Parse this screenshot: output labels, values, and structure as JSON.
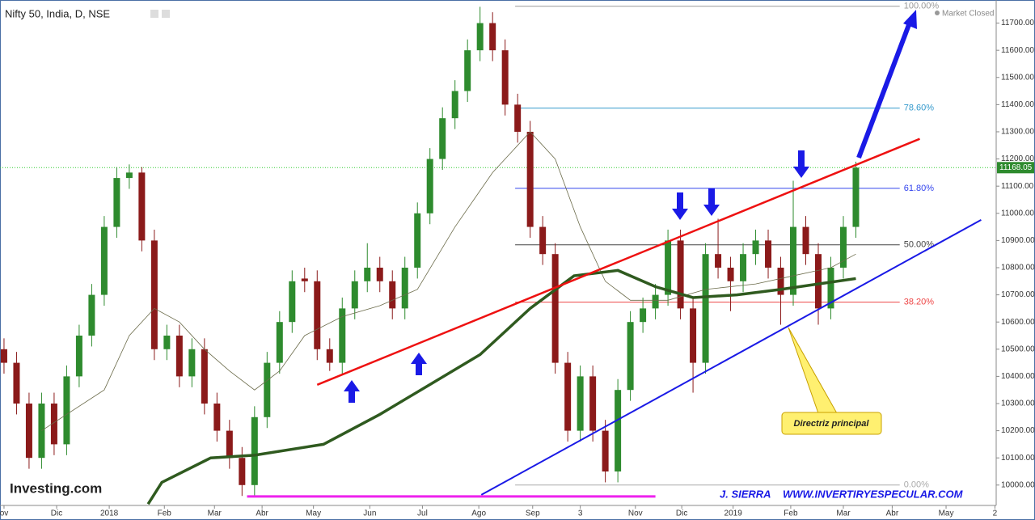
{
  "chart_data": {
    "type": "candlestick",
    "title": "Nifty 50, India, D, NSE",
    "status": "Market Closed",
    "watermark": "Investing.com",
    "author": "J. SIERRA",
    "site": "WWW.INVERTIRYESPECULAR.COM",
    "callout": "Directriz principal",
    "up_color": "#2e8b2e",
    "down_color": "#8b1a1a",
    "xlim": [
      -0.32,
      79.2
    ],
    "ylim": [
      9925,
      11785
    ],
    "grid": false,
    "xticks": [
      {
        "value": 0,
        "label": "ov"
      },
      {
        "value": 4.2,
        "label": "Dic"
      },
      {
        "value": 8.4,
        "label": "2018"
      },
      {
        "value": 12.8,
        "label": "Feb"
      },
      {
        "value": 16.8,
        "label": "Mar"
      },
      {
        "value": 20.6,
        "label": "Abr"
      },
      {
        "value": 24.7,
        "label": "May"
      },
      {
        "value": 29.2,
        "label": "Jun"
      },
      {
        "value": 33.4,
        "label": "Jul"
      },
      {
        "value": 37.9,
        "label": "Ago"
      },
      {
        "value": 42.2,
        "label": "Sep"
      },
      {
        "value": 46.0,
        "label": "3"
      },
      {
        "value": 50.4,
        "label": "Nov"
      },
      {
        "value": 54.1,
        "label": "Dic"
      },
      {
        "value": 58.2,
        "label": "2019"
      },
      {
        "value": 62.8,
        "label": "Feb"
      },
      {
        "value": 67.0,
        "label": "Mar"
      },
      {
        "value": 70.9,
        "label": "Abr"
      },
      {
        "value": 75.2,
        "label": "May"
      },
      {
        "value": 79.1,
        "label": "2"
      }
    ],
    "yticks": [
      {
        "value": 10000,
        "label": "10000.00"
      },
      {
        "value": 10100,
        "label": "10100.00"
      },
      {
        "value": 10200,
        "label": "10200.00"
      },
      {
        "value": 10300,
        "label": "10300.00"
      },
      {
        "value": 10400,
        "label": "10400.00"
      },
      {
        "value": 10500,
        "label": "10500.00"
      },
      {
        "value": 10600,
        "label": "10600.00"
      },
      {
        "value": 10700,
        "label": "10700.00"
      },
      {
        "value": 10800,
        "label": "10800.00"
      },
      {
        "value": 10900,
        "label": "10900.00"
      },
      {
        "value": 11000,
        "label": "11000.00"
      },
      {
        "value": 11100,
        "label": "11100.00"
      },
      {
        "value": 11200,
        "label": "11200.00"
      },
      {
        "value": 11300,
        "label": "11300.00"
      },
      {
        "value": 11400,
        "label": "11400.00"
      },
      {
        "value": 11500,
        "label": "11500.00"
      },
      {
        "value": 11600,
        "label": "11600.00"
      },
      {
        "value": 11700,
        "label": "11700.00"
      }
    ],
    "current": {
      "value": 11168.05,
      "label": "11168.05"
    },
    "ohlc": [
      [
        10500,
        10540,
        10410,
        10450
      ],
      [
        10450,
        10490,
        10260,
        10300
      ],
      [
        10300,
        10340,
        10060,
        10100
      ],
      [
        10100,
        10340,
        10060,
        10300
      ],
      [
        10300,
        10340,
        10110,
        10150
      ],
      [
        10150,
        10440,
        10110,
        10400
      ],
      [
        10400,
        10590,
        10360,
        10550
      ],
      [
        10550,
        10740,
        10510,
        10700
      ],
      [
        10700,
        10990,
        10660,
        10950
      ],
      [
        10950,
        11170,
        10910,
        11130
      ],
      [
        11130,
        11180,
        11090,
        11150
      ],
      [
        11150,
        11170,
        10860,
        10900
      ],
      [
        10900,
        10940,
        10460,
        10500
      ],
      [
        10500,
        10590,
        10460,
        10550
      ],
      [
        10550,
        10590,
        10360,
        10400
      ],
      [
        10400,
        10540,
        10360,
        10500
      ],
      [
        10500,
        10540,
        10260,
        10300
      ],
      [
        10300,
        10340,
        10160,
        10200
      ],
      [
        10200,
        10240,
        10060,
        10100
      ],
      [
        10100,
        10140,
        9960,
        10000
      ],
      [
        10000,
        10290,
        9960,
        10250
      ],
      [
        10250,
        10490,
        10210,
        10450
      ],
      [
        10450,
        10640,
        10410,
        10600
      ],
      [
        10600,
        10790,
        10560,
        10750
      ],
      [
        10760,
        10800,
        10710,
        10750
      ],
      [
        10750,
        10790,
        10460,
        10500
      ],
      [
        10500,
        10540,
        10420,
        10450
      ],
      [
        10450,
        10690,
        10410,
        10650
      ],
      [
        10650,
        10790,
        10610,
        10750
      ],
      [
        10750,
        10890,
        10710,
        10800
      ],
      [
        10800,
        10840,
        10710,
        10750
      ],
      [
        10750,
        10790,
        10610,
        10650
      ],
      [
        10650,
        10840,
        10610,
        10800
      ],
      [
        10800,
        11040,
        10760,
        11000
      ],
      [
        11000,
        11240,
        10960,
        11200
      ],
      [
        11200,
        11390,
        11160,
        11350
      ],
      [
        11350,
        11490,
        11310,
        11450
      ],
      [
        11450,
        11640,
        11410,
        11600
      ],
      [
        11600,
        11760,
        11560,
        11700
      ],
      [
        11700,
        11740,
        11560,
        11600
      ],
      [
        11600,
        11640,
        11360,
        11400
      ],
      [
        11400,
        11440,
        11260,
        11300
      ],
      [
        11300,
        11340,
        10910,
        10950
      ],
      [
        10950,
        10990,
        10810,
        10850
      ],
      [
        10850,
        10890,
        10410,
        10450
      ],
      [
        10450,
        10490,
        10160,
        10200
      ],
      [
        10200,
        10440,
        10160,
        10400
      ],
      [
        10400,
        10440,
        10160,
        10200
      ],
      [
        10200,
        10240,
        10010,
        10050
      ],
      [
        10050,
        10390,
        10010,
        10350
      ],
      [
        10350,
        10640,
        10310,
        10600
      ],
      [
        10600,
        10690,
        10560,
        10650
      ],
      [
        10650,
        10740,
        10610,
        10700
      ],
      [
        10700,
        10940,
        10660,
        10900
      ],
      [
        10900,
        10940,
        10610,
        10650
      ],
      [
        10650,
        10690,
        10340,
        10450
      ],
      [
        10450,
        10890,
        10410,
        10850
      ],
      [
        10850,
        10980,
        10760,
        10800
      ],
      [
        10800,
        10840,
        10640,
        10750
      ],
      [
        10750,
        10890,
        10710,
        10850
      ],
      [
        10850,
        10940,
        10810,
        10900
      ],
      [
        10900,
        10940,
        10760,
        10800
      ],
      [
        10800,
        10840,
        10590,
        10700
      ],
      [
        10700,
        11120,
        10660,
        10950
      ],
      [
        10950,
        10990,
        10810,
        10850
      ],
      [
        10850,
        10890,
        10590,
        10650
      ],
      [
        10650,
        10840,
        10610,
        10800
      ],
      [
        10800,
        10990,
        10760,
        10950
      ],
      [
        10950,
        11190,
        10910,
        11168.05
      ]
    ],
    "lines": [
      {
        "color": "#6b6b4a",
        "width": 0.8,
        "x": [
          3,
          8,
          10,
          12,
          14,
          16,
          18,
          20,
          22,
          24,
          27,
          30,
          33,
          36,
          39,
          42,
          44,
          46,
          48,
          50,
          53,
          56,
          60,
          63,
          66,
          68
        ],
        "values": [
          10200,
          10350,
          10550,
          10650,
          10600,
          10500,
          10420,
          10350,
          10420,
          10550,
          10620,
          10660,
          10720,
          10950,
          11150,
          11300,
          11200,
          10950,
          10750,
          10680,
          10680,
          10720,
          10740,
          10770,
          10800,
          10850
        ]
      },
      {
        "color": "#2f5a1f",
        "width": 3.5,
        "x": [
          11.5,
          12.6,
          16.5,
          20,
          25.5,
          30,
          34,
          38,
          42,
          45.5,
          49,
          52,
          55,
          58.5,
          62,
          65,
          68
        ],
        "values": [
          9930,
          10010,
          10100,
          10110,
          10150,
          10260,
          10370,
          10480,
          10650,
          10770,
          10790,
          10730,
          10690,
          10700,
          10720,
          10740,
          10760
        ]
      },
      {
        "color": "#ee1111",
        "width": 2.5,
        "x": [
          25.0,
          73.1
        ],
        "values": [
          10369,
          11274
        ]
      },
      {
        "color": "#1a1ae6",
        "width": 2,
        "x": [
          38.1,
          78.0
        ],
        "values": [
          9964,
          10976
        ]
      },
      {
        "color": "#ee22ee",
        "width": 3,
        "x": [
          19.4,
          52.0
        ],
        "values": [
          9958,
          9958
        ]
      }
    ],
    "fib_x": [
      40.8,
      71.5
    ],
    "fib_levels": [
      {
        "label": "100.00%",
        "value": 11762,
        "color": "#999999"
      },
      {
        "label": "78.60%",
        "value": 11387,
        "color": "#3399cc"
      },
      {
        "label": "61.80%",
        "value": 11092,
        "color": "#3344ee"
      },
      {
        "label": "50.00%",
        "value": 10884,
        "color": "#444444"
      },
      {
        "label": "38.20%",
        "value": 10673,
        "color": "#ee4444"
      },
      {
        "label": "0.00%",
        "value": 10000,
        "color": "#aaaaaa"
      }
    ]
  }
}
